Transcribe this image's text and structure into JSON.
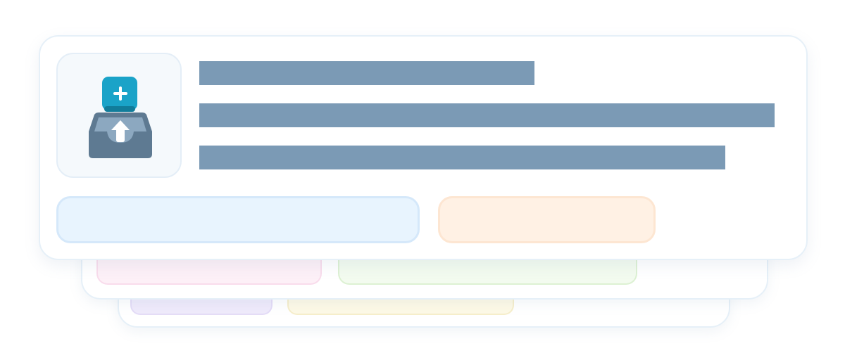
{
  "illustration": {
    "icon": "inbox-upload-icon",
    "badge_icon": "plus-icon",
    "colors": {
      "badge": "#1aa3c8",
      "tray": "#5e7a92",
      "tray_inner": "#8ca8c0",
      "arrow": "#ffffff",
      "text_placeholder": "#7b9ab5",
      "primary_button": "#e8f4fe",
      "secondary_button": "#fff1e4"
    }
  },
  "cards": {
    "front": {
      "lines": [
        "",
        "",
        ""
      ],
      "buttons": {
        "primary_label": "",
        "secondary_label": ""
      }
    },
    "back_1": {
      "chips": [
        "",
        ""
      ]
    },
    "back_2": {
      "chips": [
        "",
        ""
      ]
    }
  }
}
